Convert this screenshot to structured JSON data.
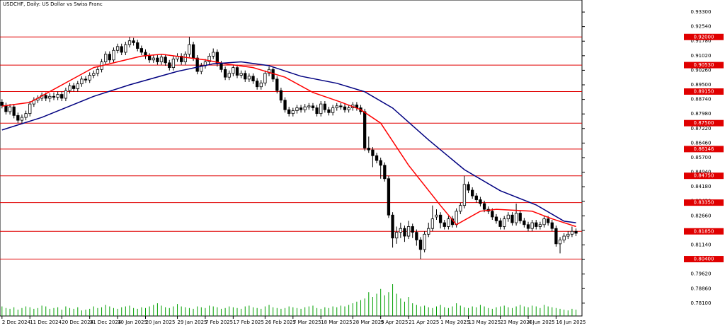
{
  "chart_data": {
    "type": "candlestick",
    "title": "USDCHF, Daily:  US Dollar vs Swiss Franc",
    "ylim": [
      0.7743,
      0.9393
    ],
    "xlim": [
      -0.5,
      145.5
    ],
    "yticks": [
      {
        "value": 0.933,
        "label": "0.93300"
      },
      {
        "value": 0.9254,
        "label": "0.92540"
      },
      {
        "value": 0.9178,
        "label": "0.91780"
      },
      {
        "value": 0.9102,
        "label": "0.91020"
      },
      {
        "value": 0.9026,
        "label": "0.90260"
      },
      {
        "value": 0.895,
        "label": "0.89500"
      },
      {
        "value": 0.8874,
        "label": "0.88740"
      },
      {
        "value": 0.8798,
        "label": "0.87980"
      },
      {
        "value": 0.8722,
        "label": "0.87220"
      },
      {
        "value": 0.8646,
        "label": "0.86460"
      },
      {
        "value": 0.857,
        "label": "0.85700"
      },
      {
        "value": 0.8494,
        "label": "0.84940"
      },
      {
        "value": 0.8418,
        "label": "0.84180"
      },
      {
        "value": 0.8342,
        "label": "0.83420"
      },
      {
        "value": 0.8266,
        "label": "0.82660"
      },
      {
        "value": 0.819,
        "label": "0.81900"
      },
      {
        "value": 0.8114,
        "label": "0.81140"
      },
      {
        "value": 0.8038,
        "label": "0.80380"
      },
      {
        "value": 0.7962,
        "label": "0.79620"
      },
      {
        "value": 0.7886,
        "label": "0.78860"
      },
      {
        "value": 0.781,
        "label": "0.78100"
      }
    ],
    "levels": [
      {
        "value": 0.92,
        "label": "0.92000"
      },
      {
        "value": 0.9053,
        "label": "0.90530"
      },
      {
        "value": 0.8915,
        "label": "0.89150"
      },
      {
        "value": 0.875,
        "label": "0.87500"
      },
      {
        "value": 0.86146,
        "label": "0.86146"
      },
      {
        "value": 0.8475,
        "label": "0.84750"
      },
      {
        "value": 0.8335,
        "label": "0.83350"
      },
      {
        "value": 0.8185,
        "label": "0.81850"
      },
      {
        "value": 0.804,
        "label": "0.80400"
      }
    ],
    "level_color": "#e00000",
    "xticks": [
      {
        "value": 0,
        "label": "2 Dec 2024"
      },
      {
        "value": 7,
        "label": "11 Dec 2024"
      },
      {
        "value": 15,
        "label": "20 Dec 2024"
      },
      {
        "value": 22,
        "label": "31 Dec 2024"
      },
      {
        "value": 29,
        "label": "10 Jan 2025"
      },
      {
        "value": 36,
        "label": "20 Jan 2025"
      },
      {
        "value": 44,
        "label": "29 Jan 2025"
      },
      {
        "value": 51,
        "label": "7 Feb 2025"
      },
      {
        "value": 58,
        "label": "17 Feb 2025"
      },
      {
        "value": 66,
        "label": "26 Feb 2025"
      },
      {
        "value": 73,
        "label": "7 Mar 2025"
      },
      {
        "value": 80,
        "label": "18 Mar 2025"
      },
      {
        "value": 88,
        "label": "28 Mar 2025"
      },
      {
        "value": 95,
        "label": "9 Apr 2025"
      },
      {
        "value": 102,
        "label": "21 Apr 2025"
      },
      {
        "value": 110,
        "label": "1 May 2025"
      },
      {
        "value": 117,
        "label": "13 May 2025"
      },
      {
        "value": 125,
        "label": "23 May 2025"
      },
      {
        "value": 132,
        "label": "4 Jun 2025"
      },
      {
        "value": 139,
        "label": "16 Jun 2025"
      }
    ],
    "ohlc": [
      [
        0.886,
        0.8875,
        0.8827,
        0.8842
      ],
      [
        0.8842,
        0.8857,
        0.8795,
        0.881
      ],
      [
        0.881,
        0.885,
        0.8795,
        0.8835
      ],
      [
        0.8835,
        0.885,
        0.8775,
        0.879
      ],
      [
        0.879,
        0.8805,
        0.875,
        0.8765
      ],
      [
        0.8765,
        0.8795,
        0.875,
        0.878
      ],
      [
        0.878,
        0.8815,
        0.8765,
        0.88
      ],
      [
        0.88,
        0.8865,
        0.8785,
        0.885
      ],
      [
        0.885,
        0.8885,
        0.8835,
        0.887
      ],
      [
        0.887,
        0.8895,
        0.8855,
        0.888
      ],
      [
        0.888,
        0.891,
        0.8865,
        0.8895
      ],
      [
        0.8895,
        0.891,
        0.8865,
        0.888
      ],
      [
        0.888,
        0.8905,
        0.886,
        0.889
      ],
      [
        0.889,
        0.891,
        0.887,
        0.8885
      ],
      [
        0.8885,
        0.8915,
        0.887,
        0.89
      ],
      [
        0.89,
        0.8915,
        0.8865,
        0.888
      ],
      [
        0.888,
        0.8935,
        0.8865,
        0.892
      ],
      [
        0.892,
        0.896,
        0.8905,
        0.8945
      ],
      [
        0.8945,
        0.896,
        0.8915,
        0.893
      ],
      [
        0.893,
        0.897,
        0.8915,
        0.8955
      ],
      [
        0.8955,
        0.8995,
        0.894,
        0.898
      ],
      [
        0.898,
        0.8995,
        0.896,
        0.8975
      ],
      [
        0.8975,
        0.9015,
        0.896,
        0.9
      ],
      [
        0.9,
        0.9025,
        0.8985,
        0.901
      ],
      [
        0.901,
        0.9045,
        0.8995,
        0.903
      ],
      [
        0.903,
        0.9085,
        0.9015,
        0.907
      ],
      [
        0.907,
        0.9125,
        0.9055,
        0.911
      ],
      [
        0.911,
        0.9125,
        0.9065,
        0.908
      ],
      [
        0.908,
        0.9145,
        0.9065,
        0.913
      ],
      [
        0.913,
        0.9165,
        0.9115,
        0.915
      ],
      [
        0.915,
        0.9165,
        0.9105,
        0.912
      ],
      [
        0.912,
        0.9175,
        0.9105,
        0.916
      ],
      [
        0.916,
        0.92,
        0.9145,
        0.918
      ],
      [
        0.918,
        0.9195,
        0.9155,
        0.917
      ],
      [
        0.917,
        0.9185,
        0.9125,
        0.914
      ],
      [
        0.914,
        0.9155,
        0.9105,
        0.912
      ],
      [
        0.912,
        0.9135,
        0.9085,
        0.91
      ],
      [
        0.91,
        0.9115,
        0.9065,
        0.908
      ],
      [
        0.908,
        0.9105,
        0.9065,
        0.909
      ],
      [
        0.909,
        0.9105,
        0.9055,
        0.907
      ],
      [
        0.907,
        0.911,
        0.9055,
        0.9095
      ],
      [
        0.9095,
        0.911,
        0.905,
        0.9065
      ],
      [
        0.9065,
        0.908,
        0.9025,
        0.904
      ],
      [
        0.904,
        0.91,
        0.9025,
        0.9085
      ],
      [
        0.9085,
        0.9115,
        0.907,
        0.91
      ],
      [
        0.91,
        0.9115,
        0.9055,
        0.907
      ],
      [
        0.907,
        0.9125,
        0.9055,
        0.911
      ],
      [
        0.911,
        0.92,
        0.9095,
        0.916
      ],
      [
        0.916,
        0.9175,
        0.9075,
        0.909
      ],
      [
        0.909,
        0.9105,
        0.9005,
        0.902
      ],
      [
        0.902,
        0.9065,
        0.9005,
        0.905
      ],
      [
        0.905,
        0.9085,
        0.9035,
        0.907
      ],
      [
        0.907,
        0.9115,
        0.9055,
        0.91
      ],
      [
        0.91,
        0.914,
        0.9085,
        0.912
      ],
      [
        0.912,
        0.9135,
        0.9045,
        0.906
      ],
      [
        0.906,
        0.9075,
        0.9015,
        0.903
      ],
      [
        0.903,
        0.9045,
        0.8975,
        0.899
      ],
      [
        0.899,
        0.9025,
        0.8975,
        0.901
      ],
      [
        0.901,
        0.9055,
        0.8995,
        0.904
      ],
      [
        0.904,
        0.9055,
        0.8985,
        0.9
      ],
      [
        0.9,
        0.9025,
        0.8985,
        0.901
      ],
      [
        0.901,
        0.9025,
        0.8965,
        0.898
      ],
      [
        0.898,
        0.901,
        0.8965,
        0.8995
      ],
      [
        0.8995,
        0.901,
        0.8955,
        0.897
      ],
      [
        0.897,
        0.8985,
        0.8925,
        0.894
      ],
      [
        0.894,
        0.8975,
        0.8925,
        0.896
      ],
      [
        0.896,
        0.9025,
        0.8945,
        0.901
      ],
      [
        0.901,
        0.9045,
        0.8995,
        0.903
      ],
      [
        0.903,
        0.9045,
        0.8965,
        0.898
      ],
      [
        0.898,
        0.8995,
        0.8905,
        0.892
      ],
      [
        0.892,
        0.8935,
        0.8855,
        0.887
      ],
      [
        0.887,
        0.8885,
        0.8805,
        0.882
      ],
      [
        0.882,
        0.8835,
        0.8785,
        0.88
      ],
      [
        0.88,
        0.883,
        0.8785,
        0.8815
      ],
      [
        0.8815,
        0.8845,
        0.88,
        0.883
      ],
      [
        0.883,
        0.8845,
        0.8805,
        0.882
      ],
      [
        0.882,
        0.885,
        0.8805,
        0.8835
      ],
      [
        0.8835,
        0.8855,
        0.882,
        0.884
      ],
      [
        0.884,
        0.8855,
        0.8815,
        0.883
      ],
      [
        0.883,
        0.8845,
        0.8785,
        0.88
      ],
      [
        0.88,
        0.8865,
        0.8785,
        0.885
      ],
      [
        0.885,
        0.8865,
        0.8805,
        0.882
      ],
      [
        0.882,
        0.8835,
        0.879,
        0.8805
      ],
      [
        0.8805,
        0.8845,
        0.879,
        0.883
      ],
      [
        0.883,
        0.8855,
        0.8815,
        0.884
      ],
      [
        0.884,
        0.8855,
        0.882,
        0.8835
      ],
      [
        0.8835,
        0.885,
        0.8805,
        0.882
      ],
      [
        0.882,
        0.8845,
        0.8805,
        0.883
      ],
      [
        0.883,
        0.886,
        0.8815,
        0.8845
      ],
      [
        0.8845,
        0.886,
        0.8815,
        0.883
      ],
      [
        0.883,
        0.8845,
        0.8795,
        0.881
      ],
      [
        0.881,
        0.8825,
        0.8605,
        0.862
      ],
      [
        0.862,
        0.868,
        0.8595,
        0.861
      ],
      [
        0.861,
        0.8625,
        0.852,
        0.858
      ],
      [
        0.858,
        0.8595,
        0.854,
        0.8555
      ],
      [
        0.8555,
        0.857,
        0.846,
        0.853
      ],
      [
        0.853,
        0.8545,
        0.8445,
        0.846
      ],
      [
        0.846,
        0.8475,
        0.8255,
        0.827
      ],
      [
        0.827,
        0.8285,
        0.81,
        0.815
      ],
      [
        0.815,
        0.821,
        0.812,
        0.818
      ],
      [
        0.818,
        0.823,
        0.815,
        0.82
      ],
      [
        0.82,
        0.8215,
        0.813,
        0.816
      ],
      [
        0.816,
        0.824,
        0.8145,
        0.821
      ],
      [
        0.821,
        0.8225,
        0.815,
        0.818
      ],
      [
        0.818,
        0.8195,
        0.811,
        0.814
      ],
      [
        0.814,
        0.8155,
        0.804,
        0.809
      ],
      [
        0.809,
        0.8185,
        0.8075,
        0.817
      ],
      [
        0.817,
        0.823,
        0.8155,
        0.82
      ],
      [
        0.82,
        0.832,
        0.8185,
        0.825
      ],
      [
        0.826,
        0.83,
        0.8245,
        0.827
      ],
      [
        0.827,
        0.8285,
        0.82,
        0.823
      ],
      [
        0.823,
        0.8245,
        0.8195,
        0.821
      ],
      [
        0.821,
        0.8265,
        0.8195,
        0.825
      ],
      [
        0.825,
        0.8265,
        0.8205,
        0.822
      ],
      [
        0.822,
        0.8305,
        0.8205,
        0.829
      ],
      [
        0.829,
        0.8335,
        0.8275,
        0.832
      ],
      [
        0.832,
        0.8475,
        0.8305,
        0.843
      ],
      [
        0.843,
        0.8445,
        0.8385,
        0.84
      ],
      [
        0.84,
        0.8415,
        0.8355,
        0.837
      ],
      [
        0.837,
        0.8385,
        0.8335,
        0.835
      ],
      [
        0.835,
        0.8365,
        0.8315,
        0.833
      ],
      [
        0.833,
        0.8345,
        0.8285,
        0.83
      ],
      [
        0.83,
        0.8315,
        0.8275,
        0.829
      ],
      [
        0.829,
        0.8305,
        0.8245,
        0.826
      ],
      [
        0.826,
        0.8275,
        0.8225,
        0.824
      ],
      [
        0.824,
        0.8255,
        0.8195,
        0.821
      ],
      [
        0.821,
        0.8265,
        0.8195,
        0.825
      ],
      [
        0.825,
        0.8285,
        0.8235,
        0.827
      ],
      [
        0.827,
        0.8285,
        0.8215,
        0.823
      ],
      [
        0.823,
        0.833,
        0.8215,
        0.828
      ],
      [
        0.828,
        0.8295,
        0.8225,
        0.824
      ],
      [
        0.824,
        0.8255,
        0.8205,
        0.822
      ],
      [
        0.822,
        0.8235,
        0.8185,
        0.82
      ],
      [
        0.82,
        0.8245,
        0.8185,
        0.823
      ],
      [
        0.823,
        0.8245,
        0.8195,
        0.821
      ],
      [
        0.821,
        0.8235,
        0.8195,
        0.822
      ],
      [
        0.822,
        0.8265,
        0.8205,
        0.825
      ],
      [
        0.825,
        0.8265,
        0.8215,
        0.823
      ],
      [
        0.823,
        0.8245,
        0.8185,
        0.82
      ],
      [
        0.82,
        0.8215,
        0.8105,
        0.812
      ],
      [
        0.812,
        0.8155,
        0.807,
        0.814
      ],
      [
        0.814,
        0.8175,
        0.8125,
        0.816
      ],
      [
        0.816,
        0.8185,
        0.8145,
        0.817
      ],
      [
        0.817,
        0.821,
        0.8155,
        0.8185
      ],
      [
        0.8185,
        0.82,
        0.816,
        0.8175
      ]
    ],
    "volumes": [
      12,
      10,
      9,
      11,
      8,
      10,
      12,
      11,
      9,
      10,
      13,
      12,
      9,
      10,
      11,
      8,
      12,
      10,
      9,
      11,
      7,
      8,
      9,
      12,
      10,
      11,
      14,
      12,
      10,
      9,
      11,
      12,
      13,
      10,
      9,
      11,
      10,
      12,
      14,
      16,
      13,
      11,
      10,
      12,
      15,
      12,
      11,
      10,
      9,
      12,
      11,
      10,
      13,
      12,
      11,
      9,
      10,
      12,
      11,
      10,
      9,
      12,
      13,
      11,
      10,
      9,
      12,
      14,
      11,
      10,
      9,
      10,
      12,
      11,
      10,
      9,
      11,
      12,
      13,
      10,
      9,
      11,
      10,
      12,
      11,
      13,
      12,
      14,
      16,
      18,
      20,
      22,
      30,
      24,
      28,
      34,
      26,
      30,
      40,
      28,
      22,
      18,
      24,
      16,
      14,
      12,
      13,
      11,
      10,
      12,
      14,
      11,
      10,
      12,
      16,
      13,
      11,
      10,
      12,
      11,
      14,
      12,
      10,
      9,
      11,
      12,
      13,
      11,
      10,
      12,
      14,
      12,
      11,
      13,
      12,
      10,
      14,
      12,
      11,
      10,
      9,
      8,
      7,
      9,
      8
    ],
    "volume_color": "#00a000",
    "series": [
      {
        "color": "#ff0000",
        "x": [
          0,
          7,
          23,
          35,
          40,
          51,
          56,
          63,
          71,
          78,
          85,
          90,
          95,
          102,
          110,
          114,
          120,
          124,
          133,
          138,
          144
        ],
        "values": [
          0.8839,
          0.8858,
          0.904,
          0.91,
          0.911,
          0.908,
          0.906,
          0.904,
          0.899,
          0.891,
          0.886,
          0.882,
          0.875,
          0.853,
          0.832,
          0.822,
          0.829,
          0.83,
          0.829,
          0.825,
          0.821
        ]
      },
      {
        "color": "#000080",
        "x": [
          0,
          10,
          23,
          32,
          44,
          53,
          60,
          67,
          75,
          84,
          91,
          98,
          107,
          116,
          125,
          134,
          141,
          144
        ],
        "values": [
          0.8714,
          0.878,
          0.889,
          0.895,
          0.902,
          0.906,
          0.907,
          0.905,
          0.8995,
          0.8958,
          0.8914,
          0.8829,
          0.8663,
          0.8507,
          0.8397,
          0.8323,
          0.8238,
          0.823
        ]
      }
    ]
  }
}
